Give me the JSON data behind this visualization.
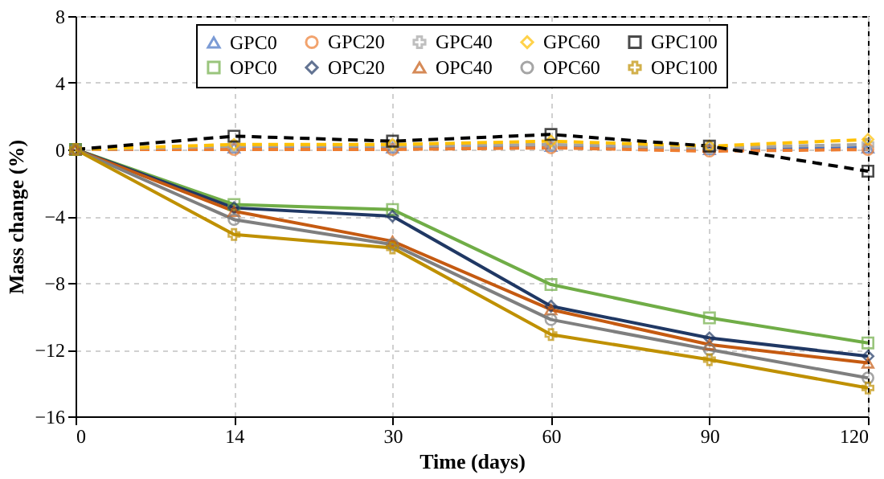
{
  "chart_data": {
    "type": "line",
    "xlabel": "Time (days)",
    "ylabel": "Mass change (%)",
    "categories": [
      "0",
      "14",
      "30",
      "60",
      "90",
      "120"
    ],
    "ylim": [
      -16,
      8
    ],
    "yticks": [
      -16,
      -12,
      -8,
      -4,
      0,
      4,
      8
    ],
    "grid": true,
    "legend": "top",
    "series": [
      {
        "name": "GPC0",
        "color": "#4472c4",
        "line_style": "dashed",
        "marker": "triangle",
        "values": [
          0,
          0.1,
          0.1,
          0.2,
          0.0,
          0.1
        ]
      },
      {
        "name": "GPC20",
        "color": "#ed7d31",
        "line_style": "dashed",
        "marker": "circle",
        "values": [
          0,
          0.0,
          0.0,
          0.1,
          -0.1,
          0.0
        ]
      },
      {
        "name": "GPC40",
        "color": "#a5a5a5",
        "line_style": "dashed",
        "marker": "cross",
        "values": [
          0,
          0.2,
          0.2,
          0.3,
          0.1,
          0.3
        ]
      },
      {
        "name": "GPC60",
        "color": "#ffc000",
        "line_style": "dashed",
        "marker": "diamond",
        "values": [
          0,
          0.3,
          0.3,
          0.5,
          0.2,
          0.6
        ]
      },
      {
        "name": "GPC100",
        "color": "#000000",
        "line_style": "dashed",
        "marker": "square",
        "values": [
          0,
          0.8,
          0.5,
          0.9,
          0.2,
          -1.3
        ]
      },
      {
        "name": "OPC0",
        "color": "#70ad47",
        "line_style": "solid",
        "marker": "square",
        "values": [
          0,
          -3.3,
          -3.6,
          -8.1,
          -10.1,
          -11.6
        ]
      },
      {
        "name": "OPC20",
        "color": "#203864",
        "line_style": "solid",
        "marker": "diamond",
        "values": [
          0,
          -3.5,
          -4.0,
          -9.4,
          -11.3,
          -12.4
        ]
      },
      {
        "name": "OPC40",
        "color": "#c55a11",
        "line_style": "solid",
        "marker": "triangle",
        "values": [
          0,
          -3.7,
          -5.5,
          -9.6,
          -11.7,
          -12.8
        ]
      },
      {
        "name": "OPC60",
        "color": "#7f7f7f",
        "line_style": "solid",
        "marker": "circle",
        "values": [
          0,
          -4.2,
          -5.7,
          -10.2,
          -12.0,
          -13.7
        ]
      },
      {
        "name": "OPC100",
        "color": "#bf9000",
        "line_style": "solid",
        "marker": "cross",
        "values": [
          0,
          -5.1,
          -5.9,
          -11.1,
          -12.6,
          -14.3
        ]
      }
    ]
  }
}
